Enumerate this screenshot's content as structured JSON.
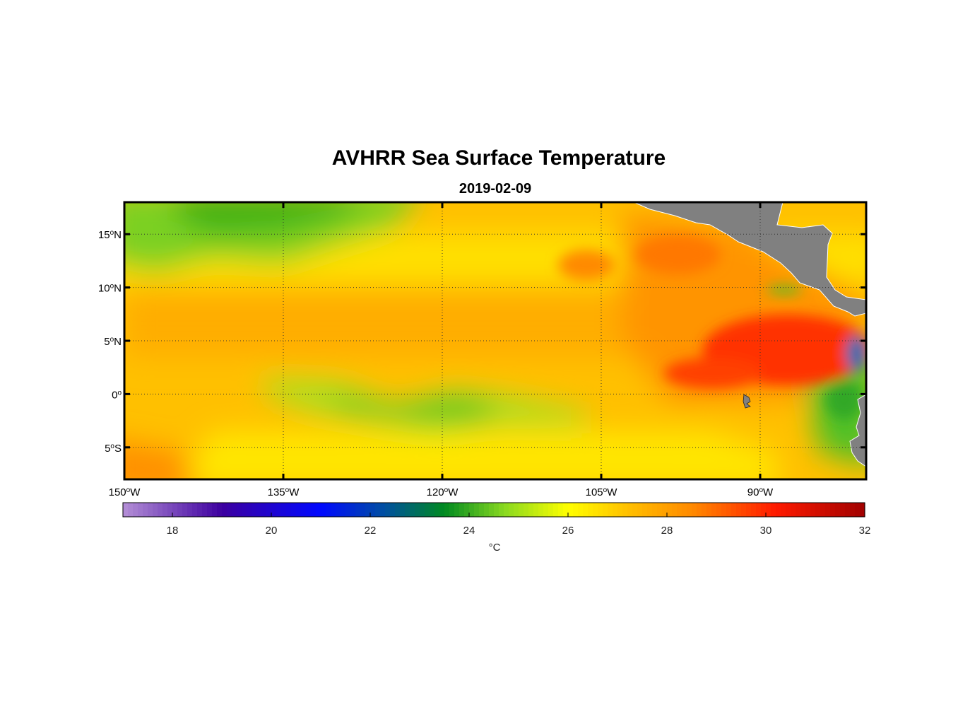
{
  "map": {
    "title": "AVHRR Sea Surface Temperature",
    "subtitle": "2019-02-09",
    "lat_labels": [
      {
        "deg": "15",
        "hemi": "N",
        "lat": 15
      },
      {
        "deg": "10",
        "hemi": "N",
        "lat": 10
      },
      {
        "deg": "5",
        "hemi": "N",
        "lat": 5
      },
      {
        "deg": "0",
        "hemi": "",
        "lat": 0
      },
      {
        "deg": "5",
        "hemi": "S",
        "lat": -5
      }
    ],
    "lon_labels": [
      {
        "deg": "150",
        "hemi": "W",
        "lon": -150
      },
      {
        "deg": "135",
        "hemi": "W",
        "lon": -135
      },
      {
        "deg": "120",
        "hemi": "W",
        "lon": -120
      },
      {
        "deg": "105",
        "hemi": "W",
        "lon": -105
      },
      {
        "deg": "90",
        "hemi": "W",
        "lon": -90
      }
    ],
    "lon_range": [
      -150,
      -80
    ],
    "lat_range": [
      -8,
      18
    ],
    "grid": "dotted",
    "land_color": "#808080"
  },
  "colorbar": {
    "ticks": [
      "18",
      "20",
      "22",
      "24",
      "26",
      "28",
      "30",
      "32"
    ],
    "tick_values": [
      18,
      20,
      22,
      24,
      26,
      28,
      30,
      32
    ],
    "range": [
      17,
      32
    ],
    "unit": "°C",
    "stops": [
      {
        "v": 17,
        "c": "#b48fd6"
      },
      {
        "v": 19,
        "c": "#3d00a0"
      },
      {
        "v": 21,
        "c": "#0008ff"
      },
      {
        "v": 22.3,
        "c": "#0050a0"
      },
      {
        "v": 23.5,
        "c": "#008a20"
      },
      {
        "v": 24.7,
        "c": "#88d820"
      },
      {
        "v": 26,
        "c": "#ffff00"
      },
      {
        "v": 27.2,
        "c": "#ffc000"
      },
      {
        "v": 28.5,
        "c": "#ff8a00"
      },
      {
        "v": 30.2,
        "c": "#ff1a00"
      },
      {
        "v": 32,
        "c": "#a00000"
      }
    ]
  }
}
